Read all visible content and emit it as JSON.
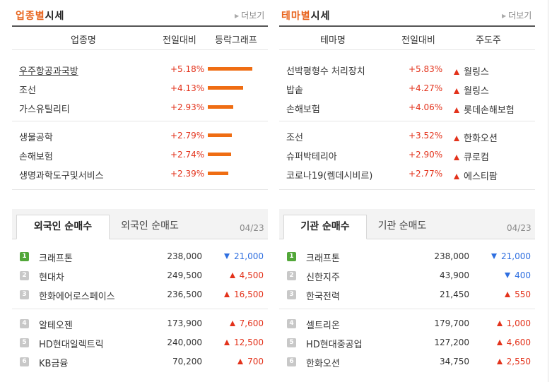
{
  "industry": {
    "title_hl": "업종별",
    "title_rest": "시세",
    "more": "더보기",
    "headers": [
      "업종명",
      "전일대비",
      "등락그래프"
    ],
    "rows": [
      {
        "name": "우주항공과국방",
        "pct": "+5.18%",
        "value": 5.18
      },
      {
        "name": "조선",
        "pct": "+4.13%",
        "value": 4.13
      },
      {
        "name": "가스유틸리티",
        "pct": "+2.93%",
        "value": 2.93
      },
      {
        "name": "생물공학",
        "pct": "+2.79%",
        "value": 2.79
      },
      {
        "name": "손해보험",
        "pct": "+2.74%",
        "value": 2.74
      },
      {
        "name": "생명과학도구및서비스",
        "pct": "+2.39%",
        "value": 2.39
      }
    ]
  },
  "theme": {
    "title_hl": "테마별",
    "title_rest": "시세",
    "more": "더보기",
    "headers": [
      "테마명",
      "전일대비",
      "주도주"
    ],
    "rows": [
      {
        "name": "선박평형수 처리장치",
        "pct": "+5.83%",
        "leader": "월링스"
      },
      {
        "name": "밥솥",
        "pct": "+4.27%",
        "leader": "월링스"
      },
      {
        "name": "손해보험",
        "pct": "+4.06%",
        "leader": "롯데손해보험"
      },
      {
        "name": "조선",
        "pct": "+3.52%",
        "leader": "한화오션"
      },
      {
        "name": "슈퍼박테리아",
        "pct": "+2.90%",
        "leader": "큐로컴"
      },
      {
        "name": "코로나19(렘데시비르)",
        "pct": "+2.77%",
        "leader": "에스티팜"
      }
    ]
  },
  "foreign": {
    "tab_active": "외국인 순매수",
    "tab_inactive": "외국인 순매도",
    "date": "04/23",
    "rows": [
      {
        "rank": "1",
        "name": "크래프톤",
        "price": "238,000",
        "dir": "dn",
        "chg": "21,000"
      },
      {
        "rank": "2",
        "name": "현대차",
        "price": "249,500",
        "dir": "up",
        "chg": "4,500"
      },
      {
        "rank": "3",
        "name": "한화에어로스페이스",
        "price": "236,500",
        "dir": "up",
        "chg": "16,500"
      },
      {
        "rank": "4",
        "name": "알테오젠",
        "price": "173,900",
        "dir": "up",
        "chg": "7,600"
      },
      {
        "rank": "5",
        "name": "HD현대일렉트릭",
        "price": "240,000",
        "dir": "up",
        "chg": "12,500"
      },
      {
        "rank": "6",
        "name": "KB금융",
        "price": "70,200",
        "dir": "up",
        "chg": "700"
      }
    ]
  },
  "institution": {
    "tab_active": "기관 순매수",
    "tab_inactive": "기관 순매도",
    "date": "04/23",
    "rows": [
      {
        "rank": "1",
        "name": "크래프톤",
        "price": "238,000",
        "dir": "dn",
        "chg": "21,000"
      },
      {
        "rank": "2",
        "name": "신한지주",
        "price": "43,900",
        "dir": "dn",
        "chg": "400"
      },
      {
        "rank": "3",
        "name": "한국전력",
        "price": "21,450",
        "dir": "up",
        "chg": "550"
      },
      {
        "rank": "4",
        "name": "셀트리온",
        "price": "179,700",
        "dir": "up",
        "chg": "1,000"
      },
      {
        "rank": "5",
        "name": "HD현대중공업",
        "price": "127,200",
        "dir": "up",
        "chg": "4,600"
      },
      {
        "rank": "6",
        "name": "한화오션",
        "price": "34,750",
        "dir": "up",
        "chg": "2,550"
      }
    ]
  },
  "colors": {
    "up": "#e3321b",
    "down": "#2f6fe0",
    "accent": "#e8631c",
    "bar": "#ef6d13",
    "rank_first": "#52a739"
  }
}
